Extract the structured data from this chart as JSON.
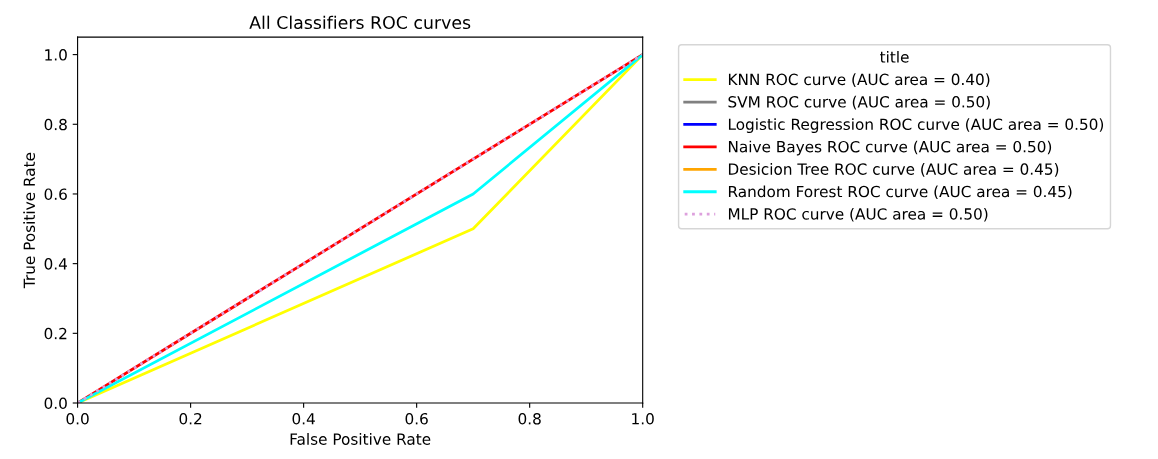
{
  "chart_data": {
    "type": "line",
    "title": "All Classifiers ROC curves",
    "xlabel": "False Positive Rate",
    "ylabel": "True Positive Rate",
    "legend_title": "title",
    "xlim": [
      0.0,
      1.0
    ],
    "ylim": [
      0.0,
      1.05
    ],
    "xticks": [
      {
        "value": 0,
        "label": "0.0"
      },
      0.2,
      0.4,
      0.6,
      0.8,
      {
        "value": 1,
        "label": "1.0"
      }
    ],
    "yticks": [
      {
        "value": 0,
        "label": "0.0"
      },
      0.2,
      0.4,
      0.6,
      0.8,
      {
        "value": 1,
        "label": "1.0"
      }
    ],
    "grid": false,
    "legend": "right",
    "marker": "none",
    "line_style": "solid",
    "series": [
      {
        "name": "KNN ROC curve (AUC area = 0.40)",
        "color": "#ffff00",
        "x": [
          0,
          0.7,
          1
        ],
        "values": [
          0,
          0.5,
          1
        ]
      },
      {
        "name": "SVM ROC curve (AUC area = 0.50)",
        "color": "#808080"
      },
      {
        "name": "Logistic Regression ROC curve (AUC area = 0.50)",
        "color": "#0000ff"
      },
      {
        "name": "Naive Bayes ROC curve (AUC area = 0.50)",
        "color": "#ff0000",
        "x": [
          0,
          1
        ],
        "values": [
          0,
          1
        ]
      },
      {
        "name": "Desicion Tree ROC curve (AUC area = 0.45)",
        "color": "#ffa500"
      },
      {
        "name": "Random Forest ROC curve (AUC area = 0.45)",
        "color": "#00ffff",
        "x": [
          0,
          0.7,
          1
        ],
        "values": [
          0,
          0.6,
          1
        ]
      },
      {
        "name": "MLP ROC curve (AUC area = 0.50)",
        "color": "#dda0dd",
        "line_style": "dotted",
        "x": [
          0,
          1
        ],
        "values": [
          0,
          1
        ]
      }
    ]
  }
}
